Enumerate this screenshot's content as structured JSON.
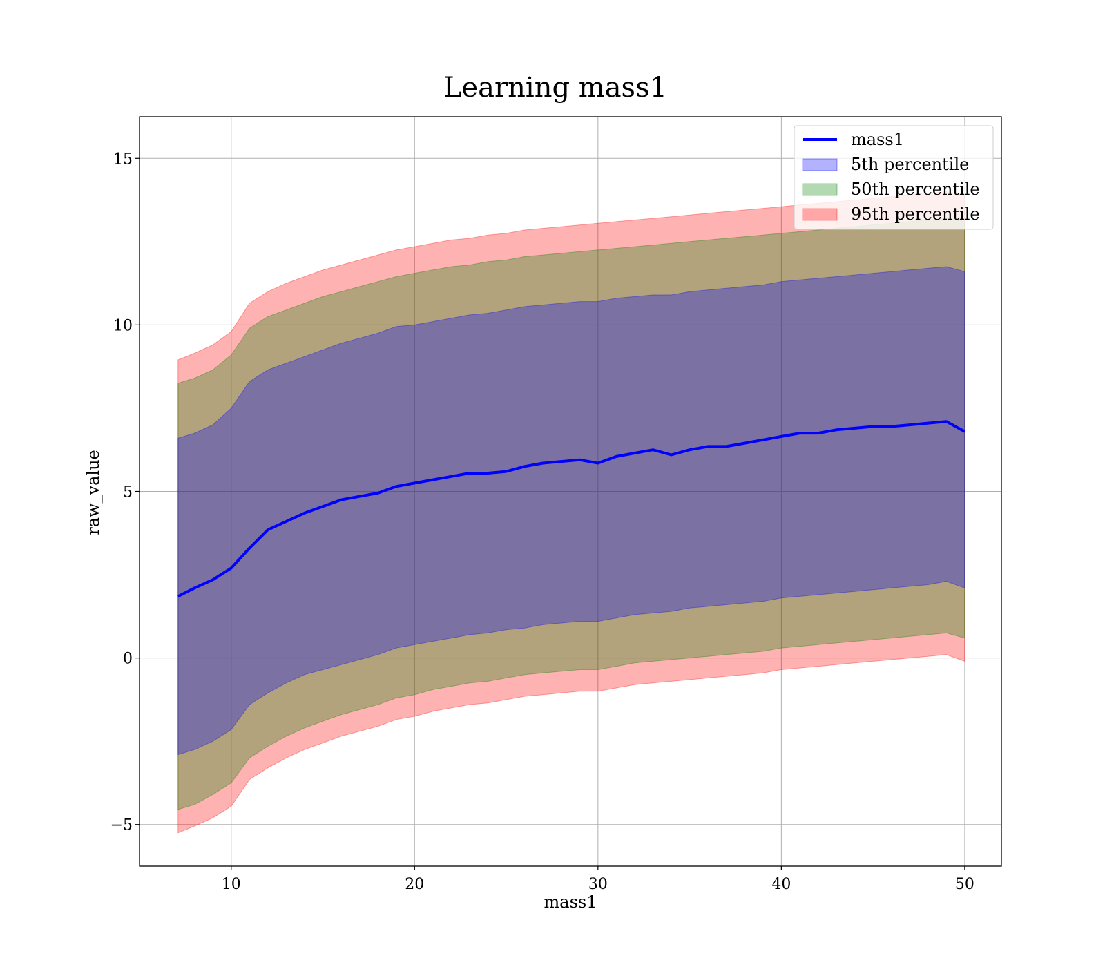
{
  "chart_data": {
    "type": "area",
    "title": "Learning mass1",
    "xlabel": "mass1",
    "ylabel": "raw_value",
    "xlim": [
      5,
      52
    ],
    "ylim": [
      -6.25,
      16.25
    ],
    "xticks": [
      10,
      20,
      30,
      40,
      50
    ],
    "yticks": [
      -5,
      0,
      5,
      10,
      15
    ],
    "xtick_labels": [
      "10",
      "20",
      "30",
      "40",
      "50"
    ],
    "ytick_labels": [
      "−5",
      "0",
      "5",
      "10",
      "15"
    ],
    "grid": true,
    "legend_position": "top-right",
    "legend": [
      {
        "label": "mass1",
        "kind": "line",
        "color": "#0000ff"
      },
      {
        "label": "5th percentile",
        "kind": "patch",
        "color": "#0000ff"
      },
      {
        "label": "50th percentile",
        "kind": "patch",
        "color": "#008000"
      },
      {
        "label": "95th percentile",
        "kind": "patch",
        "color": "#ff0000"
      }
    ],
    "x": [
      7.1,
      8,
      9,
      10,
      11,
      12,
      13,
      14,
      15,
      16,
      17,
      18,
      19,
      20,
      21,
      22,
      23,
      24,
      25,
      26,
      27,
      28,
      29,
      30,
      31,
      32,
      33,
      34,
      35,
      36,
      37,
      38,
      39,
      40,
      41,
      42,
      43,
      44,
      45,
      46,
      47,
      48,
      49,
      50
    ],
    "series": [
      {
        "name": "mass1",
        "kind": "line",
        "color": "#0000ff",
        "values": [
          1.85,
          2.1,
          2.35,
          2.7,
          3.3,
          3.85,
          4.1,
          4.35,
          4.55,
          4.75,
          4.85,
          4.95,
          5.15,
          5.25,
          5.35,
          5.45,
          5.55,
          5.55,
          5.6,
          5.75,
          5.85,
          5.9,
          5.95,
          5.85,
          6.05,
          6.15,
          6.25,
          6.1,
          6.25,
          6.35,
          6.35,
          6.45,
          6.55,
          6.65,
          6.75,
          6.75,
          6.85,
          6.9,
          6.95,
          6.95,
          7.0,
          7.05,
          7.1,
          6.8
        ]
      },
      {
        "name": "5th percentile",
        "kind": "band",
        "color": "#0000ff",
        "upper": [
          6.6,
          6.75,
          7.0,
          7.5,
          8.3,
          8.65,
          8.85,
          9.05,
          9.25,
          9.45,
          9.6,
          9.75,
          9.95,
          10.0,
          10.1,
          10.2,
          10.3,
          10.35,
          10.45,
          10.55,
          10.6,
          10.65,
          10.7,
          10.7,
          10.8,
          10.85,
          10.9,
          10.9,
          11.0,
          11.05,
          11.1,
          11.15,
          11.2,
          11.3,
          11.35,
          11.4,
          11.45,
          11.5,
          11.55,
          11.6,
          11.65,
          11.7,
          11.75,
          11.6
        ],
        "lower": [
          -2.9,
          -2.75,
          -2.5,
          -2.15,
          -1.4,
          -1.05,
          -0.75,
          -0.5,
          -0.35,
          -0.2,
          -0.05,
          0.1,
          0.3,
          0.4,
          0.5,
          0.6,
          0.7,
          0.75,
          0.85,
          0.9,
          1.0,
          1.05,
          1.1,
          1.1,
          1.2,
          1.3,
          1.35,
          1.4,
          1.5,
          1.55,
          1.6,
          1.65,
          1.7,
          1.8,
          1.85,
          1.9,
          1.95,
          2.0,
          2.05,
          2.1,
          2.15,
          2.2,
          2.3,
          2.1
        ]
      },
      {
        "name": "50th percentile",
        "kind": "band",
        "color": "#008000",
        "upper": [
          8.25,
          8.4,
          8.65,
          9.1,
          9.9,
          10.25,
          10.45,
          10.65,
          10.85,
          11.0,
          11.15,
          11.3,
          11.45,
          11.55,
          11.65,
          11.75,
          11.8,
          11.9,
          11.95,
          12.05,
          12.1,
          12.15,
          12.2,
          12.25,
          12.3,
          12.35,
          12.4,
          12.45,
          12.5,
          12.55,
          12.6,
          12.65,
          12.7,
          12.75,
          12.8,
          12.85,
          12.9,
          12.95,
          13.0,
          13.05,
          13.1,
          13.15,
          13.2,
          13.1
        ],
        "lower": [
          -4.55,
          -4.4,
          -4.1,
          -3.75,
          -3.0,
          -2.65,
          -2.35,
          -2.1,
          -1.9,
          -1.7,
          -1.55,
          -1.4,
          -1.2,
          -1.1,
          -0.95,
          -0.85,
          -0.75,
          -0.7,
          -0.6,
          -0.5,
          -0.45,
          -0.4,
          -0.35,
          -0.35,
          -0.25,
          -0.15,
          -0.1,
          -0.05,
          0.0,
          0.05,
          0.1,
          0.15,
          0.2,
          0.3,
          0.35,
          0.4,
          0.45,
          0.5,
          0.55,
          0.6,
          0.65,
          0.7,
          0.75,
          0.6
        ]
      },
      {
        "name": "95th percentile",
        "kind": "band",
        "color": "#ff0000",
        "upper": [
          8.95,
          9.15,
          9.4,
          9.8,
          10.65,
          11.0,
          11.25,
          11.45,
          11.65,
          11.8,
          11.95,
          12.1,
          12.25,
          12.35,
          12.45,
          12.55,
          12.6,
          12.7,
          12.75,
          12.85,
          12.9,
          12.95,
          13.0,
          13.05,
          13.1,
          13.15,
          13.2,
          13.25,
          13.3,
          13.35,
          13.4,
          13.45,
          13.5,
          13.55,
          13.6,
          13.65,
          13.7,
          13.75,
          13.8,
          13.85,
          13.9,
          13.95,
          14.0,
          13.9
        ],
        "lower": [
          -5.25,
          -5.05,
          -4.8,
          -4.45,
          -3.65,
          -3.3,
          -3.0,
          -2.75,
          -2.55,
          -2.35,
          -2.2,
          -2.05,
          -1.85,
          -1.75,
          -1.6,
          -1.5,
          -1.4,
          -1.35,
          -1.25,
          -1.15,
          -1.1,
          -1.05,
          -1.0,
          -1.0,
          -0.9,
          -0.8,
          -0.75,
          -0.7,
          -0.65,
          -0.6,
          -0.55,
          -0.5,
          -0.45,
          -0.35,
          -0.3,
          -0.25,
          -0.2,
          -0.15,
          -0.1,
          -0.05,
          0.0,
          0.05,
          0.1,
          -0.1
        ]
      }
    ]
  }
}
